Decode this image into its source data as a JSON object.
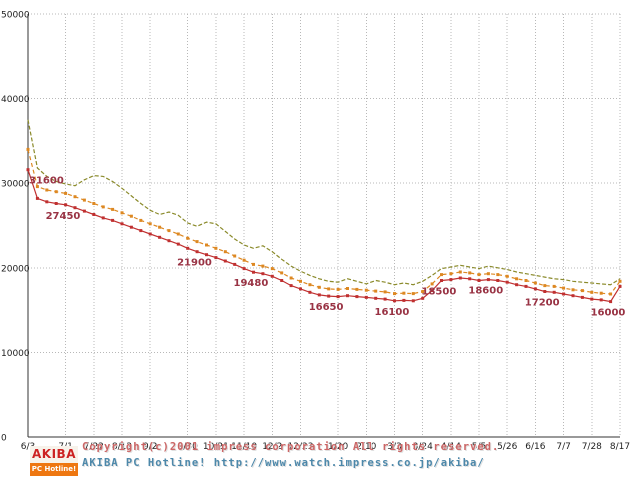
{
  "chart_data": {
    "type": "line",
    "title": "",
    "xlabel": "",
    "ylabel": "",
    "ylim": [
      0,
      50000
    ],
    "grid": true,
    "legend": "none",
    "y_ticks": [
      0,
      10000,
      20000,
      30000,
      40000,
      50000
    ],
    "y_tick_labels": [
      "0",
      "10000",
      "20000",
      "30000",
      "40000",
      "50000"
    ],
    "x_tick_labels": [
      "6/3",
      "7/1",
      "7/22",
      "8/12",
      "9/2",
      "9/30",
      "10/21",
      "11/10",
      "12/2",
      "12/23",
      "1/20",
      "2/10",
      "3/3",
      "3/24",
      "4/14",
      "5/5",
      "5/26",
      "6/16",
      "7/7",
      "7/28",
      "8/17"
    ],
    "x_tick_weeks": [
      0,
      4,
      7,
      10,
      13,
      17,
      20,
      23,
      26,
      29,
      33,
      36,
      39,
      42,
      45,
      48,
      51,
      54,
      57,
      60,
      63
    ],
    "weeks_total": 63,
    "series": [
      {
        "name": "upper-price-dashed-olive",
        "color": "#8a8a2a",
        "dash": "4,2",
        "marker": "none",
        "values": [
          37500,
          31800,
          30800,
          30200,
          29900,
          29700,
          30400,
          30900,
          30800,
          30200,
          29400,
          28500,
          27600,
          26800,
          26300,
          26600,
          26200,
          25300,
          24900,
          25400,
          25200,
          24300,
          23400,
          22700,
          22300,
          22600,
          21900,
          21000,
          20200,
          19600,
          19100,
          18700,
          18400,
          18300,
          18700,
          18400,
          18100,
          18500,
          18300,
          18000,
          18200,
          18000,
          18400,
          19100,
          19900,
          20100,
          20300,
          20100,
          19900,
          20200,
          20000,
          19800,
          19500,
          19300,
          19100,
          18900,
          18700,
          18600,
          18400,
          18300,
          18200,
          18100,
          18000,
          18700
        ]
      },
      {
        "name": "middle-price-dashed-orange",
        "color": "#dd8822",
        "dash": "4,3",
        "marker": "square",
        "values": [
          34000,
          29600,
          29200,
          29000,
          28800,
          28400,
          28000,
          27600,
          27200,
          26900,
          26500,
          26100,
          25600,
          25200,
          24800,
          24400,
          24000,
          23500,
          23100,
          22700,
          22300,
          21900,
          21400,
          20900,
          20400,
          20200,
          19900,
          19400,
          18800,
          18400,
          18000,
          17700,
          17500,
          17450,
          17550,
          17450,
          17350,
          17250,
          17150,
          16950,
          17000,
          16950,
          17200,
          18100,
          19200,
          19300,
          19500,
          19400,
          19200,
          19300,
          19200,
          19000,
          18700,
          18500,
          18200,
          17900,
          17800,
          17600,
          17400,
          17300,
          17100,
          17000,
          16900,
          18400
        ]
      },
      {
        "name": "lowest-price-solid-red",
        "color": "#c03030",
        "dash": "",
        "marker": "square",
        "values": [
          31600,
          28200,
          27800,
          27600,
          27450,
          27100,
          26700,
          26300,
          25900,
          25600,
          25200,
          24800,
          24400,
          24000,
          23600,
          23200,
          22800,
          22300,
          21900,
          21550,
          21200,
          20800,
          20400,
          19900,
          19480,
          19300,
          19000,
          18500,
          17900,
          17500,
          17100,
          16800,
          16650,
          16600,
          16700,
          16600,
          16500,
          16400,
          16300,
          16100,
          16150,
          16100,
          16400,
          17300,
          18500,
          18600,
          18800,
          18700,
          18500,
          18600,
          18500,
          18300,
          18000,
          17800,
          17500,
          17200,
          17100,
          16900,
          16700,
          16500,
          16300,
          16200,
          16000,
          17800
        ]
      }
    ],
    "annotations": [
      {
        "week": 0,
        "value": 31600,
        "label": "31600"
      },
      {
        "week": 4,
        "value": 27450,
        "label": "27450"
      },
      {
        "week": 18,
        "value": 21900,
        "label": "21900"
      },
      {
        "week": 24,
        "value": 19480,
        "label": "19480"
      },
      {
        "week": 32,
        "value": 16650,
        "label": "16650"
      },
      {
        "week": 39,
        "value": 16100,
        "label": "16100"
      },
      {
        "week": 44,
        "value": 18500,
        "label": "18500"
      },
      {
        "week": 49,
        "value": 18600,
        "label": "18600"
      },
      {
        "week": 55,
        "value": 17200,
        "label": "17200"
      },
      {
        "week": 62,
        "value": 16000,
        "label": "16000"
      }
    ],
    "annotation_color": "#993344",
    "grid_color": "#b8b8b8",
    "background_color": "#ffffff"
  },
  "footer": {
    "copyright_line": "Copyright(c)2001 impress corporation All rights reserved.",
    "site_line": "AKIBA PC Hotline! http://www.watch.impress.co.jp/akiba/",
    "logo": {
      "top_text": "AKIBA",
      "bottom_text": "PC Hotline!"
    },
    "copyright_color": "#cc6666",
    "site_color": "#4d88aa"
  }
}
